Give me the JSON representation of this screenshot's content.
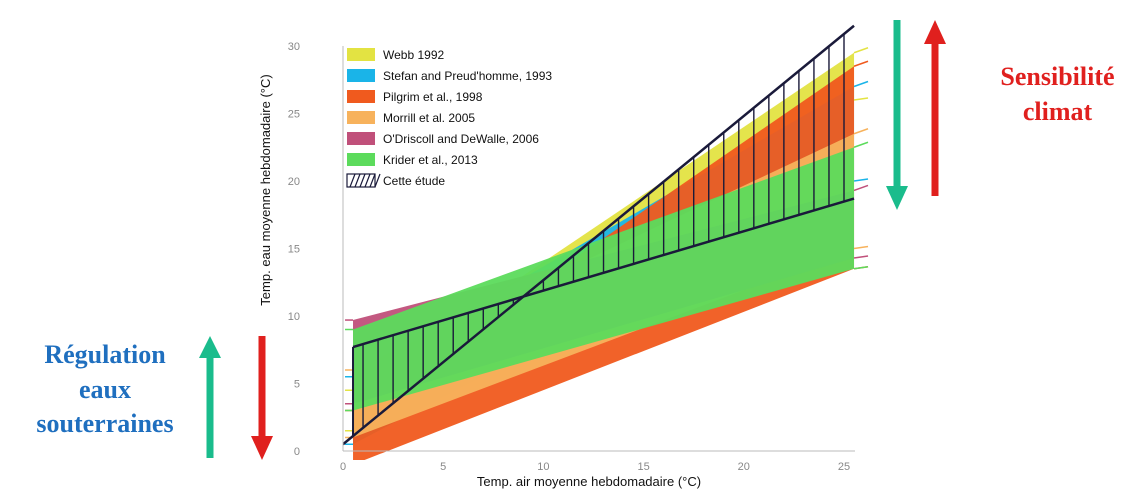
{
  "chart_data": {
    "type": "area",
    "xlabel": "Temp. air moyenne hebdomadaire  (°C)",
    "ylabel": "Temp. eau moyenne hebdomadaire (°C)",
    "xlim": [
      0,
      25
    ],
    "ylim": [
      0,
      30
    ],
    "x_ticks": [
      "0",
      "5",
      "10",
      "15",
      "20",
      "25"
    ],
    "y_ticks": [
      "0",
      "5",
      "10",
      "15",
      "20",
      "25",
      "30"
    ],
    "grid": false,
    "legend_position": "top-left",
    "series": [
      {
        "name": "Webb 1992",
        "color": "#e3e342",
        "band": [
          [
            0.5,
            1.5,
            4.5
          ],
          [
            25.5,
            26.0,
            29.5
          ]
        ]
      },
      {
        "name": "Stefan and Preud'homme, 1993",
        "color": "#1ab4e8",
        "band": [
          [
            0.5,
            0.5,
            5.5
          ],
          [
            25.5,
            20.0,
            27.0
          ]
        ]
      },
      {
        "name": "Pilgrim et al., 1998",
        "color": "#f05a1e",
        "band": [
          [
            0.5,
            -1.0,
            3.0
          ],
          [
            25.5,
            13.5,
            28.5
          ]
        ]
      },
      {
        "name": "Morrill et al. 2005",
        "color": "#f7b25c",
        "band": [
          [
            0.5,
            1.0,
            6.0
          ],
          [
            25.5,
            15.0,
            23.5
          ]
        ]
      },
      {
        "name": "O'Driscoll and DeWalle, 2006",
        "color": "#c0507a",
        "band": [
          [
            0.5,
            3.5,
            9.7
          ],
          [
            25.5,
            14.3,
            19.3
          ]
        ]
      },
      {
        "name": "Krider et al., 2013",
        "color": "#5cdb5c",
        "band": [
          [
            0.5,
            3.0,
            9.0
          ],
          [
            25.5,
            13.5,
            22.5
          ]
        ]
      }
    ],
    "hatched": {
      "name": "Cette étude",
      "lines": [
        {
          "name": "upper",
          "points": [
            [
              0,
              0.5
            ],
            [
              25.5,
              31.5
            ]
          ]
        },
        {
          "name": "lower",
          "points": [
            [
              0.5,
              7.7
            ],
            [
              25.5,
              18.7
            ]
          ]
        }
      ]
    }
  },
  "left_annotation": [
    "Régulation",
    "eaux",
    "souterraines"
  ],
  "right_annotation": [
    "Sensibilité",
    "climat"
  ],
  "colors": {
    "arrow_green": "#1abc8c",
    "arrow_red": "#e0201e",
    "left_text": "#1f6fbf",
    "right_text": "#e0201e"
  }
}
